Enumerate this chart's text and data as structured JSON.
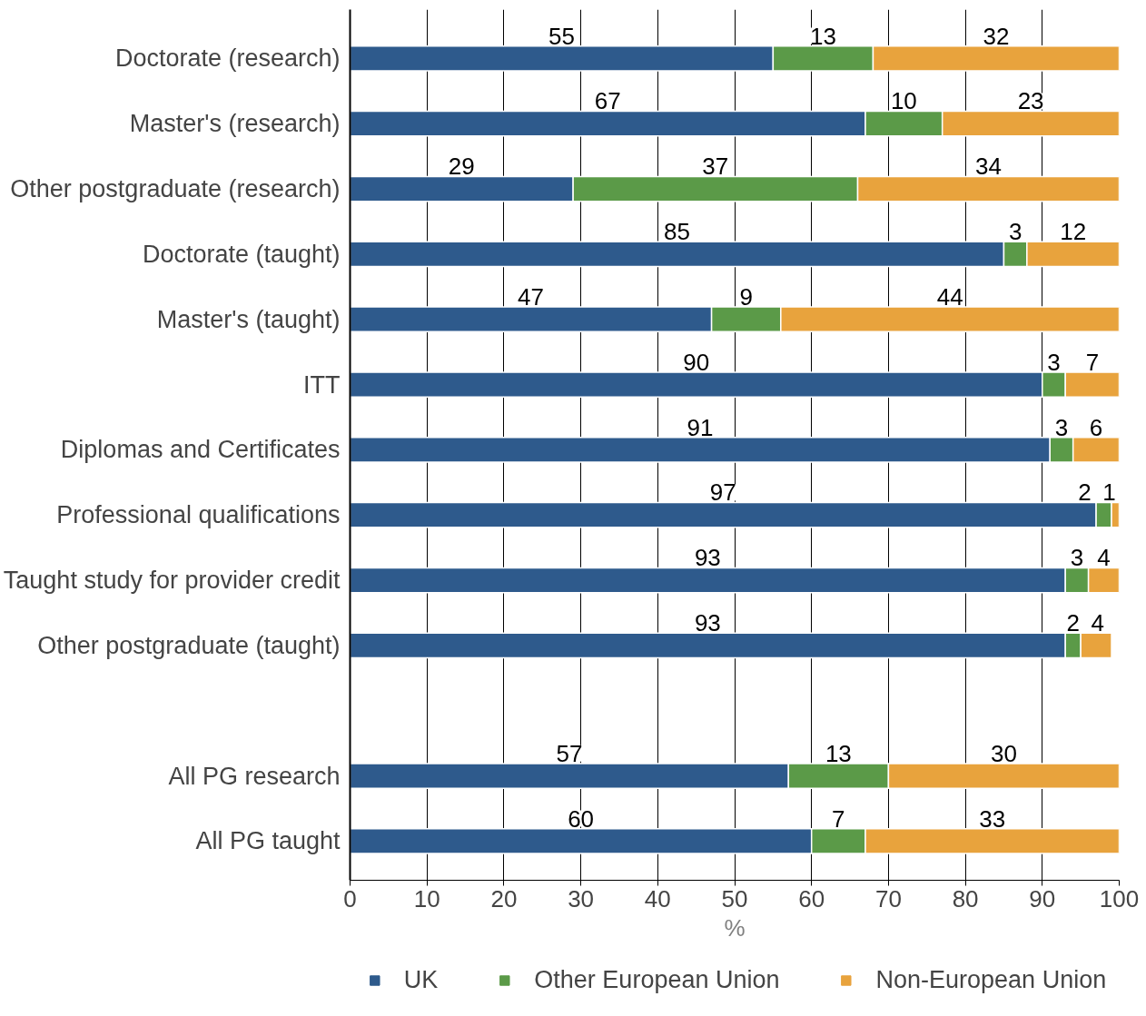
{
  "chart_data": {
    "type": "bar",
    "orientation": "horizontal",
    "stacked": true,
    "xlabel": "%",
    "categories": [
      "Doctorate (research)",
      "Master's (research)",
      "Other postgraduate (research)",
      "Doctorate (taught)",
      "Master's (taught)",
      "ITT",
      "Diplomas and Certificates",
      "Professional qualifications",
      "Taught study for provider credit",
      "Other postgraduate (taught)",
      null,
      "All PG research",
      "All PG taught"
    ],
    "series": [
      {
        "name": "UK",
        "color": "#2e5a8c",
        "values": [
          55,
          67,
          29,
          85,
          47,
          90,
          91,
          97,
          93,
          93,
          null,
          57,
          60
        ]
      },
      {
        "name": "Other European Union",
        "color": "#5b9a48",
        "values": [
          13,
          10,
          37,
          3,
          9,
          3,
          3,
          2,
          3,
          2,
          null,
          13,
          7
        ]
      },
      {
        "name": "Non-European Union",
        "color": "#e8a33d",
        "values": [
          32,
          23,
          34,
          12,
          44,
          7,
          6,
          1,
          4,
          4,
          null,
          30,
          33
        ]
      }
    ],
    "xlim": [
      0,
      100
    ],
    "xticks": [
      0,
      10,
      20,
      30,
      40,
      50,
      60,
      70,
      80,
      90,
      100
    ],
    "grid": "x",
    "legend": "bottom",
    "data_labels": true
  }
}
